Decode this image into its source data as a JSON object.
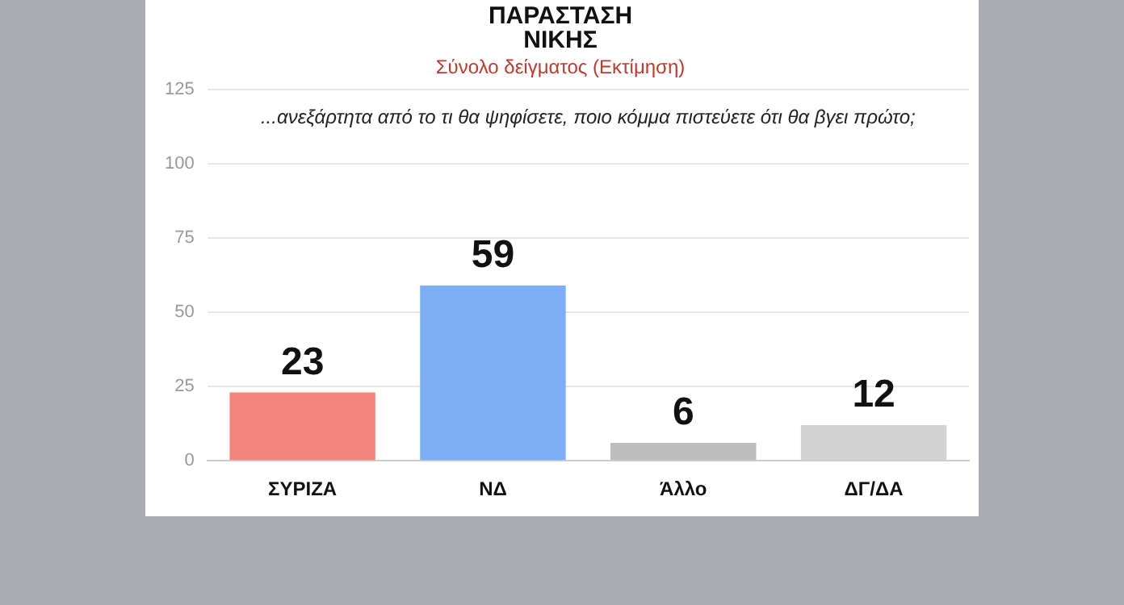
{
  "chart_data": {
    "type": "bar",
    "title": "ΠΑΡΑΣΤΑΣΗ ΝΙΚΗΣ",
    "subtitle": "Σύνολο δείγματος (Εκτίμηση)",
    "annotations": [
      "...ανεξάρτητα από το τι θα ψηφίσετε, ποιο κόμμα πιστεύετε ότι θα βγει πρώτο;"
    ],
    "categories": [
      "ΣΥΡΙΖΑ",
      "ΝΔ",
      "Άλλο",
      "ΔΓ/ΔΑ"
    ],
    "values": [
      23,
      59,
      6,
      12
    ],
    "colors": [
      "#f4847b",
      "#7eaef6",
      "#bdbdbd",
      "#d3d3d3"
    ],
    "ylim": [
      0,
      125
    ],
    "yticks": [
      0,
      25,
      50,
      75,
      100,
      125
    ],
    "grid": "y",
    "data_labels": true,
    "legend": false
  }
}
